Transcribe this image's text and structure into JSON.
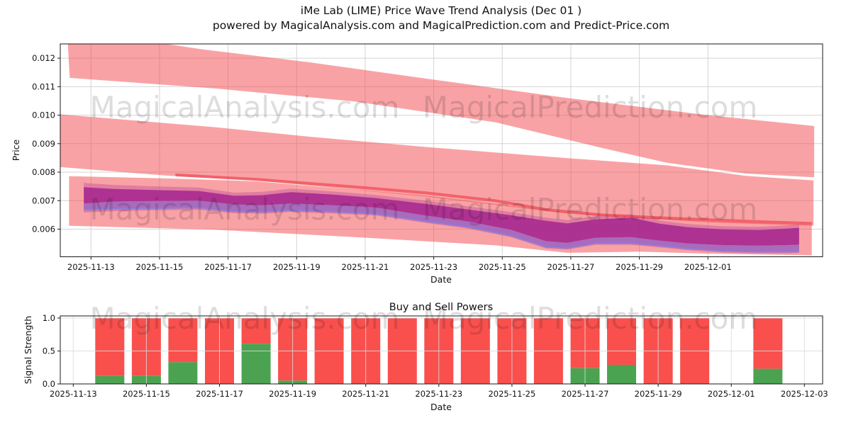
{
  "header": {
    "title": "iMe Lab (LIME) Price Wave Trend Analysis (Dec 01 )",
    "subtitle": "powered by MagicalAnalysis.com and MagicalPrediction.com and Predict-Price.com"
  },
  "watermarks": [
    "MagicalAnalysis.com",
    "MagicalPrediction.com"
  ],
  "chart_data": [
    {
      "type": "area",
      "name": "price-wave-trend",
      "xlabel": "Date",
      "ylabel": "Price",
      "ylim": [
        0.00503,
        0.0125
      ],
      "xlim_days_from_2025_11_13": [
        -0.9,
        21.35
      ],
      "grid": true,
      "ytick_labels": [
        "0.006",
        "0.007",
        "0.008",
        "0.009",
        "0.010",
        "0.011",
        "0.012"
      ],
      "ytick_values": [
        0.006,
        0.007,
        0.008,
        0.009,
        0.01,
        0.011,
        0.012
      ],
      "xticks": [
        {
          "label": "2025-11-13",
          "d": 0
        },
        {
          "label": "2025-11-15",
          "d": 2
        },
        {
          "label": "2025-11-17",
          "d": 4
        },
        {
          "label": "2025-11-19",
          "d": 6
        },
        {
          "label": "2025-11-21",
          "d": 8
        },
        {
          "label": "2025-11-23",
          "d": 10
        },
        {
          "label": "2025-11-25",
          "d": 12
        },
        {
          "label": "2025-11-27",
          "d": 14
        },
        {
          "label": "2025-11-29",
          "d": 16
        },
        {
          "label": "2025-12-01",
          "d": 18
        }
      ],
      "band_fill": "#f4464c",
      "band_opacity": 0.5,
      "bands": [
        {
          "name": "upper-forecast-band",
          "top": {
            "x": [
              -0.68,
              1.5,
              3.3,
              6.4,
              9.8,
              13.9,
              18.0,
              21.1
            ],
            "p": [
              0.01262,
              0.01262,
              0.0123,
              0.01185,
              0.01128,
              0.0106,
              0.01,
              0.00962
            ]
          },
          "bottom": {
            "x": [
              -0.62,
              3.6,
              7.7,
              11.8,
              14.9,
              16.8,
              19.1,
              21.1
            ],
            "p": [
              0.01131,
              0.01094,
              0.01048,
              0.00975,
              0.00885,
              0.00833,
              0.00795,
              0.00782
            ]
          }
        },
        {
          "name": "middle-forecast-band",
          "top": {
            "x": [
              -0.9,
              3.6,
              6.4,
              9.8,
              13.9,
              16.8,
              19.1,
              21.08
            ],
            "p": [
              0.01003,
              0.00958,
              0.00924,
              0.00888,
              0.00849,
              0.00824,
              0.00787,
              0.00771
            ]
          },
          "bottom": {
            "x": [
              -0.9,
              2.2,
              4.8,
              9.8,
              13.9,
              18.0,
              21.08
            ],
            "p": [
              0.00818,
              0.00788,
              0.00771,
              0.00714,
              0.00655,
              0.00624,
              0.00612
            ]
          }
        },
        {
          "name": "lower-forecast-band",
          "top": {
            "x": [
              -0.64,
              2.2,
              4.8,
              9.8,
              13.9,
              18.0,
              21.03
            ],
            "p": [
              0.00786,
              0.00778,
              0.00768,
              0.00717,
              0.00658,
              0.00628,
              0.00615
            ]
          },
          "bottom": {
            "x": [
              -0.64,
              3.6,
              7.7,
              11.8,
              13.9,
              16.0,
              18.0,
              21.03
            ],
            "p": [
              0.00612,
              0.00598,
              0.00572,
              0.00543,
              0.00517,
              0.00521,
              0.00514,
              0.00508
            ]
          }
        }
      ],
      "trend_line": {
        "name": "trend-line",
        "color": "#ef4a55",
        "opacity": 0.72,
        "x": [
          2.5,
          4.8,
          7.7,
          9.8,
          11.8,
          13.3,
          14.9,
          17.0,
          19.1,
          21.0
        ],
        "p": [
          0.0079,
          0.00775,
          0.00748,
          0.00727,
          0.007,
          0.00668,
          0.0065,
          0.00638,
          0.00628,
          0.0062
        ]
      },
      "price_wave": {
        "name": "price-wave-band",
        "halo_fill": "#c2509e",
        "halo_opacity": 0.45,
        "core_fill": "#a5288e",
        "core_opacity": 0.88,
        "lower_fill": "#8f63c9",
        "lower_opacity": 0.68,
        "edge_stroke": "#8b79da",
        "edge_opacity": 0.8,
        "x": [
          -0.21,
          0.66,
          1.9,
          3.14,
          4.18,
          5.0,
          5.83,
          7.07,
          8.31,
          9.76,
          11.0,
          12.24,
          13.28,
          13.9,
          14.72,
          15.76,
          16.59,
          17.41,
          18.45,
          19.48,
          20.31,
          20.66
        ],
        "top": [
          0.00762,
          0.00755,
          0.0075,
          0.00746,
          0.00728,
          0.00731,
          0.00742,
          0.00732,
          0.0072,
          0.007,
          0.0068,
          0.0066,
          0.0064,
          0.00632,
          0.00646,
          0.00652,
          0.0063,
          0.00618,
          0.0061,
          0.00608,
          0.00613,
          0.00616
        ],
        "core_top": [
          0.00747,
          0.00741,
          0.00737,
          0.00734,
          0.00717,
          0.00719,
          0.0073,
          0.00721,
          0.00709,
          0.00689,
          0.00669,
          0.00649,
          0.00629,
          0.0062,
          0.00634,
          0.0064,
          0.00619,
          0.00607,
          0.00599,
          0.00597,
          0.00602,
          0.00605
        ],
        "core_bot": [
          0.0069,
          0.00697,
          0.00699,
          0.007,
          0.00687,
          0.00684,
          0.0069,
          0.00684,
          0.00676,
          0.00648,
          0.00627,
          0.00598,
          0.00558,
          0.00552,
          0.0057,
          0.00572,
          0.0056,
          0.0055,
          0.00544,
          0.00542,
          0.00544,
          0.00546
        ],
        "lower_bot": [
          0.00668,
          0.00672,
          0.00674,
          0.00676,
          0.00663,
          0.00661,
          0.00667,
          0.00662,
          0.00654,
          0.00628,
          0.00608,
          0.00578,
          0.00538,
          0.00534,
          0.00551,
          0.00551,
          0.00542,
          0.00532,
          0.00524,
          0.00521,
          0.00521,
          0.00522
        ],
        "bottom": [
          0.00658,
          0.00663,
          0.00666,
          0.00668,
          0.00656,
          0.00654,
          0.0066,
          0.00655,
          0.00648,
          0.00622,
          0.00602,
          0.00572,
          0.00532,
          0.00528,
          0.00545,
          0.00545,
          0.00536,
          0.00526,
          0.00518,
          0.00515,
          0.00515,
          0.00516
        ]
      }
    },
    {
      "type": "bar",
      "name": "buy-sell-powers",
      "stacked": true,
      "title": "Buy and Sell Powers",
      "xlabel": "Date",
      "ylabel": "Signal Strength",
      "ylim": [
        0,
        1.032
      ],
      "grid": true,
      "ytick_labels": [
        "0.0",
        "0.5",
        "1.0"
      ],
      "ytick_values": [
        0,
        0.5,
        1.0
      ],
      "xticks": [
        {
          "label": "2025-11-13",
          "d": 0
        },
        {
          "label": "2025-11-15",
          "d": 2
        },
        {
          "label": "2025-11-17",
          "d": 4
        },
        {
          "label": "2025-11-19",
          "d": 6
        },
        {
          "label": "2025-11-21",
          "d": 8
        },
        {
          "label": "2025-11-23",
          "d": 10
        },
        {
          "label": "2025-11-25",
          "d": 12
        },
        {
          "label": "2025-11-27",
          "d": 14
        },
        {
          "label": "2025-11-29",
          "d": 16
        },
        {
          "label": "2025-12-01",
          "d": 18
        },
        {
          "label": "2025-12-03",
          "d": 20
        }
      ],
      "colors": {
        "buy": "#4ba352",
        "sell": "#f9504d"
      },
      "bars": {
        "dates": [
          "2025-11-14",
          "2025-11-15",
          "2025-11-16",
          "2025-11-17",
          "2025-11-18",
          "2025-11-19",
          "2025-11-20",
          "2025-11-21",
          "2025-11-22",
          "2025-11-23",
          "2025-11-24",
          "2025-11-25",
          "2025-11-26",
          "2025-11-27",
          "2025-11-28",
          "2025-11-29",
          "2025-11-30",
          "2025-12-02"
        ],
        "day_offsets": [
          1,
          2,
          3,
          4,
          5,
          6,
          7,
          8,
          9,
          10,
          11,
          12,
          13,
          14,
          15,
          16,
          17,
          19
        ],
        "buy": [
          0.12,
          0.12,
          0.33,
          0,
          0.61,
          0.05,
          0,
          0,
          0,
          0,
          0,
          0,
          0,
          0.24,
          0.29,
          0,
          0,
          0.23
        ],
        "sell": [
          0.88,
          0.88,
          0.67,
          1,
          0.39,
          0.95,
          1,
          1,
          1,
          1,
          1,
          1,
          1,
          0.76,
          0.71,
          1,
          1,
          0.77
        ],
        "total": 1.0
      }
    }
  ]
}
